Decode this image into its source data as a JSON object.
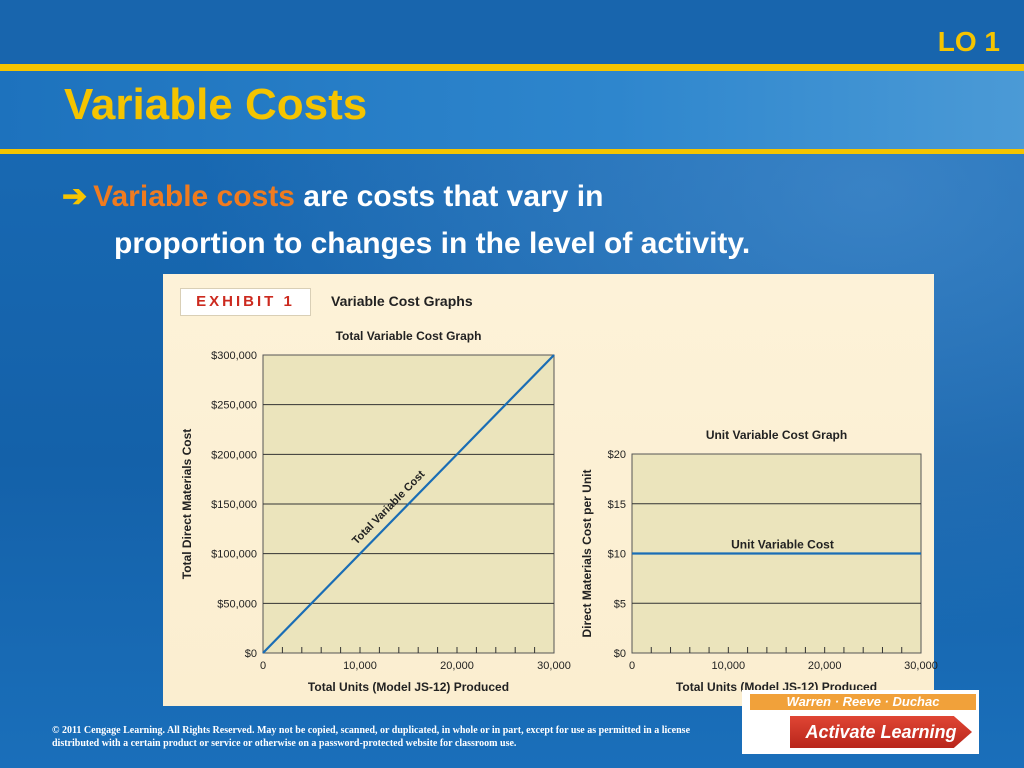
{
  "slide": {
    "lo_label": "LO 1",
    "title": "Variable Costs",
    "bullet": {
      "arrow": "➔",
      "term": "Variable costs",
      "text_line1": " are costs that vary in",
      "text_line2": "proportion to changes in the level of activity."
    },
    "exhibit": {
      "tag": "EXHIBIT 1",
      "title": "Variable Cost Graphs"
    },
    "footer": "© 2011 Cengage Learning. All Rights Reserved. May not be copied, scanned, or duplicated, in whole or in part, except for use as permitted in a license distributed with a certain product or service or otherwise on a password-protected website for classroom use.",
    "logo": {
      "authors": "Warren · Reeve · Duchac",
      "button": "Activate Learning"
    },
    "colors": {
      "background": "#1565ad",
      "accent_yellow": "#f5c400",
      "term_orange": "#f07b1f",
      "exhibit_red": "#cc2a1f",
      "plot_fill": "#ebe4bc",
      "line_blue": "#1a6db5"
    }
  },
  "chart_data": [
    {
      "type": "line",
      "title": "Total  Variable Cost Graph",
      "xlabel": "Total Units (Model JS-12) Produced",
      "ylabel": "Total Direct Materials Cost",
      "x_ticks": [
        "0",
        "10,000",
        "20,000",
        "30,000"
      ],
      "y_ticks": [
        "$0",
        "$50,000",
        "$100,000",
        "$150,000",
        "$200,000",
        "$250,000",
        "$300,000"
      ],
      "xlim": [
        0,
        30000
      ],
      "ylim": [
        0,
        300000
      ],
      "grid": true,
      "series": [
        {
          "name": "Total  Variable Cost",
          "x": [
            0,
            30000
          ],
          "y": [
            0,
            300000
          ]
        }
      ]
    },
    {
      "type": "line",
      "title": "Unit Variable Cost Graph",
      "xlabel": "Total Units (Model JS-12) Produced",
      "ylabel": "Direct Materials Cost per Unit",
      "x_ticks": [
        "0",
        "10,000",
        "20,000",
        "30,000"
      ],
      "y_ticks": [
        "$0",
        "$5",
        "$10",
        "$15",
        "$20"
      ],
      "xlim": [
        0,
        30000
      ],
      "ylim": [
        0,
        20
      ],
      "grid": true,
      "series": [
        {
          "name": "Unit  Variable Cost",
          "x": [
            0,
            30000
          ],
          "y": [
            10,
            10
          ]
        }
      ]
    }
  ]
}
